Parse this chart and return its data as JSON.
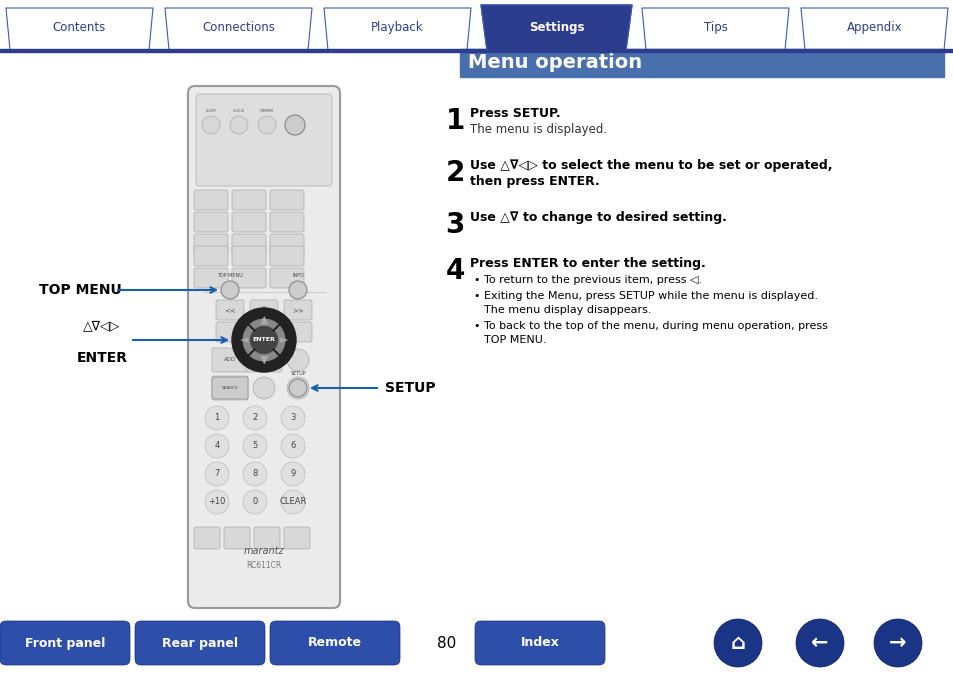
{
  "title": "Menu operation",
  "title_bg": "#4a6fad",
  "title_color": "#ffffff",
  "page_bg": "#ffffff",
  "tab_labels": [
    "Contents",
    "Connections",
    "Playback",
    "Settings",
    "Tips",
    "Appendix"
  ],
  "active_tab": 3,
  "tab_bg_active": "#2d3d8e",
  "tab_bg_inactive": "#ffffff",
  "tab_border": "#3a5bb5",
  "tab_text_active": "#ffffff",
  "tab_text_inactive": "#2d3d8e",
  "header_line_color": "#2d3d8e",
  "nav_btn_color": "#2d4faa",
  "icon_btn_color": "#1a3585",
  "step1_bold": "Press SETUP.",
  "step1_normal": "The menu is displayed.",
  "step2_bold": "Use △∇◁▷ to select the menu to be set or operated,",
  "step2_bold2": "then press ENTER.",
  "step3_bold": "Use △∇ to change to desired setting.",
  "step4_bold": "Press ENTER to enter the setting.",
  "bullet1": "To return to the previous item, press ◁.",
  "bullet2a": "Exiting the Menu, press SETUP while the menu is displayed.",
  "bullet2b": "The menu display disappears.",
  "bullet3a": "To back to the top of the menu, during menu operation, press",
  "bullet3b": "TOP MENU.",
  "label_topmenu": "TOP MENU",
  "label_arrows": "△∇◁▷",
  "label_enter": "ENTER",
  "label_setup": "SETUP",
  "nav_buttons": [
    "Front panel",
    "Rear panel",
    "Remote",
    "Index"
  ],
  "page_number": "80"
}
